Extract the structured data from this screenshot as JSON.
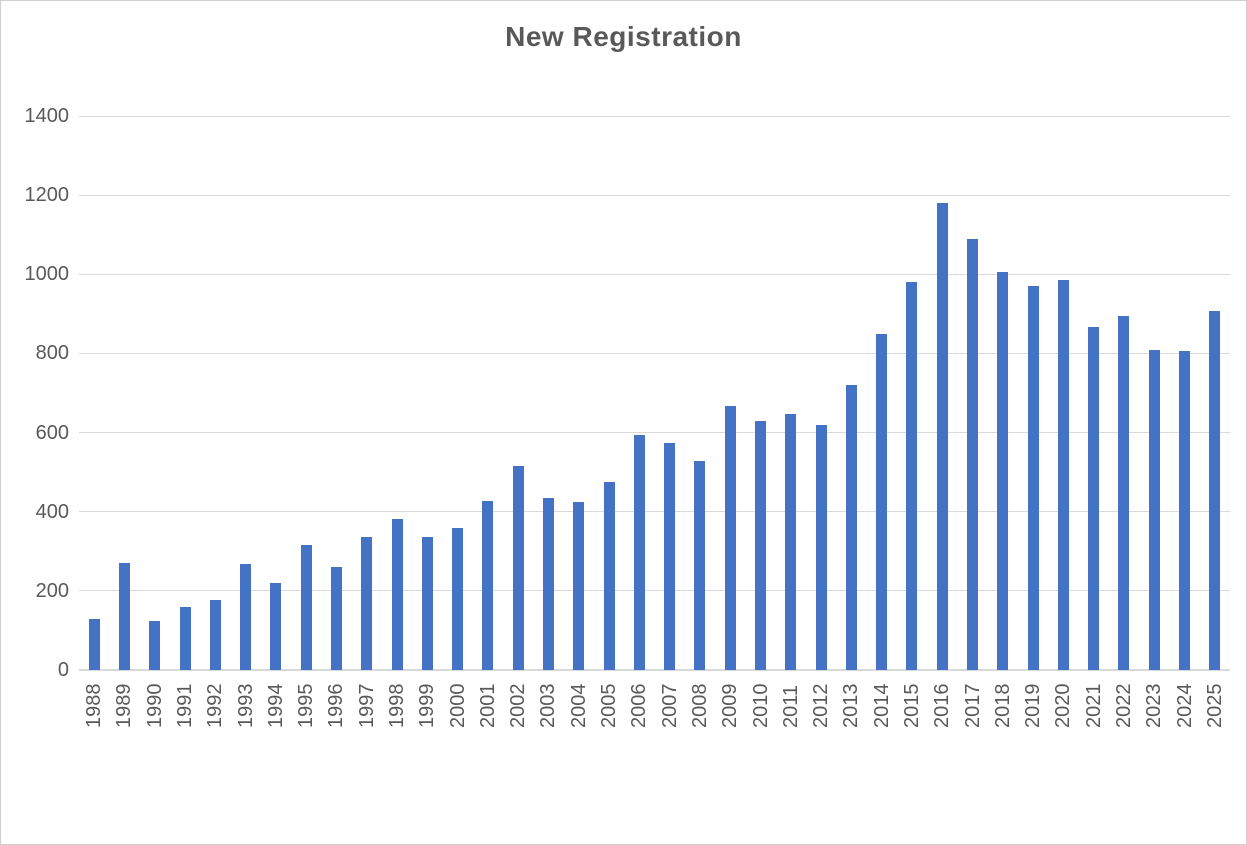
{
  "chart_data": {
    "type": "bar",
    "title": "New Registration",
    "categories": [
      "1988",
      "1989",
      "1990",
      "1991",
      "1992",
      "1993",
      "1994",
      "1995",
      "1996",
      "1997",
      "1998",
      "1999",
      "2000",
      "2001",
      "2002",
      "2003",
      "2004",
      "2005",
      "2006",
      "2007",
      "2008",
      "2009",
      "2010",
      "2011",
      "2012",
      "2013",
      "2014",
      "2015",
      "2016",
      "2017",
      "2018",
      "2019",
      "2020",
      "2021",
      "2022",
      "2023",
      "2024",
      "2025"
    ],
    "values": [
      129,
      271,
      124,
      158,
      177,
      269,
      219,
      316,
      261,
      335,
      381,
      336,
      358,
      428,
      516,
      435,
      425,
      474,
      593,
      573,
      529,
      668,
      628,
      648,
      618,
      719,
      848,
      980,
      1181,
      1089,
      1005,
      970,
      985,
      866,
      894,
      809,
      805,
      908
    ],
    "xlabel": "",
    "ylabel": "",
    "ylim": [
      0,
      1400
    ],
    "ytick_step": 200,
    "yticks": [
      0,
      200,
      400,
      600,
      800,
      1000,
      1200,
      1400
    ],
    "grid": true,
    "legend_position": "none",
    "bar_color": "#4472c4",
    "gridline_color": "#d9d9d9",
    "axis_line_color": "#d9d9d9",
    "tick_label_color": "#595959",
    "title_color": "#595959",
    "frame_border_color": "#cfcfcf",
    "background_color": "#ffffff"
  }
}
